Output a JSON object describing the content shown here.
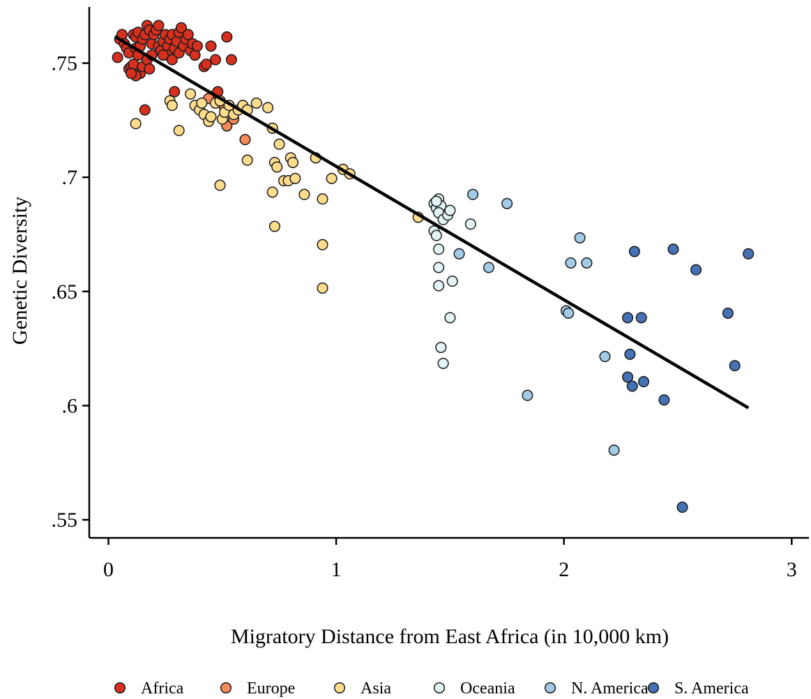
{
  "chart_data": {
    "type": "scatter",
    "title": "",
    "xlabel": "Migratory Distance from East Africa (in 10,000 km)",
    "ylabel": "Genetic Diversity",
    "xlim": [
      -0.08,
      3.08
    ],
    "ylim": [
      0.542,
      0.777
    ],
    "x_ticks": [
      0,
      1,
      2,
      3
    ],
    "x_tick_labels": [
      "0",
      "1",
      "2",
      "3"
    ],
    "y_ticks": [
      0.55,
      0.6,
      0.65,
      0.7,
      0.75
    ],
    "y_tick_labels": [
      ".55",
      ".6",
      ".65",
      ".7",
      ".75"
    ],
    "grid": false,
    "legend_position": "bottom",
    "fit_line": {
      "x": [
        0.03,
        2.81
      ],
      "y": [
        0.7615,
        0.599
      ]
    },
    "series": [
      {
        "name": "Africa",
        "color": "#d7301f",
        "points": [
          [
            0.04,
            0.7525
          ],
          [
            0.05,
            0.7605
          ],
          [
            0.06,
            0.7625
          ],
          [
            0.07,
            0.7585
          ],
          [
            0.08,
            0.7565
          ],
          [
            0.09,
            0.7545
          ],
          [
            0.09,
            0.7475
          ],
          [
            0.1,
            0.7485
          ],
          [
            0.11,
            0.7495
          ],
          [
            0.11,
            0.7625
          ],
          [
            0.12,
            0.7565
          ],
          [
            0.12,
            0.7615
          ],
          [
            0.13,
            0.7535
          ],
          [
            0.13,
            0.7635
          ],
          [
            0.14,
            0.7455
          ],
          [
            0.14,
            0.7575
          ],
          [
            0.15,
            0.7485
          ],
          [
            0.15,
            0.7605
          ],
          [
            0.16,
            0.7625
          ],
          [
            0.17,
            0.7665
          ],
          [
            0.17,
            0.7515
          ],
          [
            0.18,
            0.7475
          ],
          [
            0.18,
            0.7645
          ],
          [
            0.19,
            0.7535
          ],
          [
            0.19,
            0.7585
          ],
          [
            0.2,
            0.7625
          ],
          [
            0.21,
            0.7645
          ],
          [
            0.22,
            0.7665
          ],
          [
            0.22,
            0.7575
          ],
          [
            0.23,
            0.7555
          ],
          [
            0.24,
            0.7595
          ],
          [
            0.25,
            0.7625
          ],
          [
            0.26,
            0.7575
          ],
          [
            0.26,
            0.7535
          ],
          [
            0.27,
            0.7605
          ],
          [
            0.28,
            0.7625
          ],
          [
            0.28,
            0.7515
          ],
          [
            0.29,
            0.7565
          ],
          [
            0.3,
            0.7595
          ],
          [
            0.31,
            0.7635
          ],
          [
            0.31,
            0.7545
          ],
          [
            0.32,
            0.7655
          ],
          [
            0.33,
            0.7575
          ],
          [
            0.34,
            0.7605
          ],
          [
            0.35,
            0.7625
          ],
          [
            0.36,
            0.7555
          ],
          [
            0.37,
            0.7585
          ],
          [
            0.38,
            0.7535
          ],
          [
            0.39,
            0.7575
          ],
          [
            0.42,
            0.7485
          ],
          [
            0.43,
            0.7495
          ],
          [
            0.45,
            0.7575
          ],
          [
            0.47,
            0.7515
          ],
          [
            0.52,
            0.7615
          ],
          [
            0.54,
            0.7515
          ],
          [
            0.29,
            0.7375
          ],
          [
            0.46,
            0.7355
          ],
          [
            0.48,
            0.7375
          ],
          [
            0.16,
            0.7295
          ],
          [
            0.12,
            0.7445
          ],
          [
            0.1,
            0.7455
          ],
          [
            0.24,
            0.7535
          ]
        ]
      },
      {
        "name": "Europe",
        "color": "#f4895a",
        "points": [
          [
            0.44,
            0.7345
          ],
          [
            0.52,
            0.7225
          ],
          [
            0.55,
            0.7255
          ],
          [
            0.6,
            0.7165
          ],
          [
            0.51,
            0.7305
          ]
        ]
      },
      {
        "name": "Asia",
        "color": "#fddc8c",
        "points": [
          [
            0.12,
            0.7235
          ],
          [
            0.27,
            0.7335
          ],
          [
            0.28,
            0.7315
          ],
          [
            0.31,
            0.7205
          ],
          [
            0.36,
            0.7365
          ],
          [
            0.38,
            0.7315
          ],
          [
            0.4,
            0.7295
          ],
          [
            0.41,
            0.7325
          ],
          [
            0.42,
            0.7275
          ],
          [
            0.44,
            0.7245
          ],
          [
            0.45,
            0.7265
          ],
          [
            0.47,
            0.7325
          ],
          [
            0.49,
            0.7335
          ],
          [
            0.5,
            0.7255
          ],
          [
            0.51,
            0.7285
          ],
          [
            0.53,
            0.7315
          ],
          [
            0.55,
            0.7275
          ],
          [
            0.57,
            0.7295
          ],
          [
            0.59,
            0.7315
          ],
          [
            0.61,
            0.7295
          ],
          [
            0.65,
            0.7325
          ],
          [
            0.7,
            0.7305
          ],
          [
            0.72,
            0.7215
          ],
          [
            0.75,
            0.7145
          ],
          [
            0.73,
            0.7065
          ],
          [
            0.74,
            0.7045
          ],
          [
            0.61,
            0.7075
          ],
          [
            0.77,
            0.6985
          ],
          [
            0.79,
            0.6985
          ],
          [
            0.8,
            0.7085
          ],
          [
            0.81,
            0.7065
          ],
          [
            0.82,
            0.6995
          ],
          [
            0.72,
            0.6935
          ],
          [
            0.86,
            0.6925
          ],
          [
            0.91,
            0.7085
          ],
          [
            0.94,
            0.6905
          ],
          [
            0.98,
            0.6995
          ],
          [
            1.03,
            0.7035
          ],
          [
            1.06,
            0.7015
          ],
          [
            0.49,
            0.6965
          ],
          [
            0.73,
            0.6785
          ],
          [
            0.94,
            0.6705
          ],
          [
            0.94,
            0.6515
          ],
          [
            1.36,
            0.6825
          ]
        ]
      },
      {
        "name": "Oceania",
        "color": "#e3f4f6",
        "points": [
          [
            1.43,
            0.6885
          ],
          [
            1.44,
            0.6865
          ],
          [
            1.45,
            0.6905
          ],
          [
            1.46,
            0.6875
          ],
          [
            1.45,
            0.6845
          ],
          [
            1.47,
            0.6815
          ],
          [
            1.49,
            0.6835
          ],
          [
            1.5,
            0.6855
          ],
          [
            1.43,
            0.6765
          ],
          [
            1.44,
            0.6745
          ],
          [
            1.45,
            0.6685
          ],
          [
            1.45,
            0.6605
          ],
          [
            1.45,
            0.6525
          ],
          [
            1.51,
            0.6545
          ],
          [
            1.5,
            0.6385
          ],
          [
            1.46,
            0.6255
          ],
          [
            1.47,
            0.6185
          ],
          [
            1.59,
            0.6795
          ],
          [
            1.44,
            0.6895
          ]
        ]
      },
      {
        "name": "N. America",
        "color": "#a3cbe6",
        "points": [
          [
            1.6,
            0.6925
          ],
          [
            1.75,
            0.6885
          ],
          [
            1.54,
            0.6665
          ],
          [
            1.67,
            0.6605
          ],
          [
            1.84,
            0.6045
          ],
          [
            2.01,
            0.6415
          ],
          [
            2.02,
            0.6405
          ],
          [
            2.03,
            0.6625
          ],
          [
            2.07,
            0.6735
          ],
          [
            2.1,
            0.6625
          ],
          [
            2.18,
            0.6215
          ],
          [
            2.22,
            0.5805
          ]
        ]
      },
      {
        "name": "S. America",
        "color": "#4572b5",
        "points": [
          [
            2.28,
            0.6385
          ],
          [
            2.28,
            0.6125
          ],
          [
            2.29,
            0.6225
          ],
          [
            2.3,
            0.6085
          ],
          [
            2.31,
            0.6675
          ],
          [
            2.34,
            0.6385
          ],
          [
            2.35,
            0.6105
          ],
          [
            2.44,
            0.6025
          ],
          [
            2.48,
            0.6685
          ],
          [
            2.52,
            0.5555
          ],
          [
            2.58,
            0.6595
          ],
          [
            2.72,
            0.6405
          ],
          [
            2.75,
            0.6175
          ],
          [
            2.81,
            0.6665
          ]
        ]
      }
    ]
  }
}
